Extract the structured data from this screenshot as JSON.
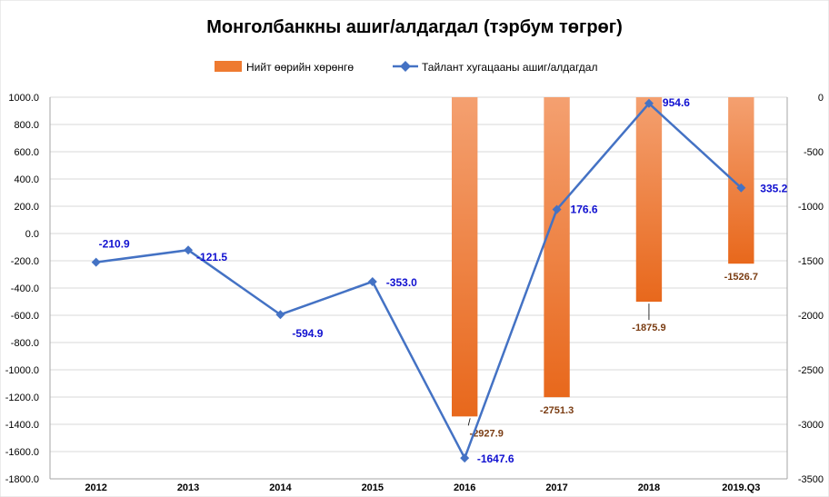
{
  "chart_data": {
    "type": "bar",
    "title": "Монголбанкны ашиг/алдагдал (тэрбум төгрөг)",
    "categories": [
      "2012",
      "2013",
      "2014",
      "2015",
      "2016",
      "2017",
      "2018",
      "2019.Q3"
    ],
    "series": [
      {
        "name": "Нийт өөрийн хөрөнгө",
        "type": "bar",
        "axis": "right",
        "color": "#ee7a30",
        "values": [
          null,
          null,
          null,
          null,
          -2927.9,
          -2751.3,
          -1875.9,
          -1526.7
        ],
        "labels": [
          "",
          "",
          "",
          "",
          "-2927.9",
          "-2751.3",
          "-1875.9",
          "-1526.7"
        ]
      },
      {
        "name": "Тайлант хугацааны ашиг/алдагдал",
        "type": "line",
        "axis": "left",
        "color": "#4472c4",
        "values": [
          -210.9,
          -121.5,
          -594.9,
          -353.0,
          -1647.6,
          176.6,
          954.6,
          335.2
        ],
        "labels": [
          "-210.9",
          "-121.5",
          "-594.9",
          "-353.0",
          "-1647.6",
          "176.6",
          "954.6",
          "335.2"
        ]
      }
    ],
    "y_left": {
      "lim": [
        -1800,
        1000
      ],
      "ticks": [
        1000,
        800,
        600,
        400,
        200,
        0,
        -200,
        -400,
        -600,
        -800,
        -1000,
        -1200,
        -1400,
        -1600,
        -1800
      ],
      "tick_labels": [
        "1000.0",
        "800.0",
        "600.0",
        "400.0",
        "200.0",
        "0.0",
        "-200.0",
        "-400.0",
        "-600.0",
        "-800.0",
        "-1000.0",
        "-1200.0",
        "-1400.0",
        "-1600.0",
        "-1800.0"
      ]
    },
    "y_right": {
      "lim": [
        -3500,
        0
      ],
      "ticks": [
        0,
        -500,
        -1000,
        -1500,
        -2000,
        -2500,
        -3000,
        -3500
      ],
      "tick_labels": [
        "0",
        "-500",
        "-1000",
        "-1500",
        "-2000",
        "-2500",
        "-3000",
        "-3500"
      ]
    },
    "grid": true,
    "legend": "top"
  }
}
